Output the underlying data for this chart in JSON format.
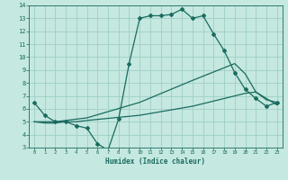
{
  "xlabel": "Humidex (Indice chaleur)",
  "xlim": [
    -0.5,
    23.5
  ],
  "ylim": [
    3,
    14
  ],
  "xticks": [
    0,
    1,
    2,
    3,
    4,
    5,
    6,
    7,
    8,
    9,
    10,
    11,
    12,
    13,
    14,
    15,
    16,
    17,
    18,
    19,
    20,
    21,
    22,
    23
  ],
  "yticks": [
    3,
    4,
    5,
    6,
    7,
    8,
    9,
    10,
    11,
    12,
    13,
    14
  ],
  "bg_color": "#c5e8e0",
  "grid_color": "#9ecfc5",
  "line_color": "#1a6b60",
  "line1_x": [
    0,
    1,
    2,
    3,
    4,
    5,
    6,
    7,
    8,
    9,
    10,
    11,
    12,
    13,
    14,
    15,
    16,
    17,
    18,
    19,
    20,
    21,
    22,
    23
  ],
  "line1_y": [
    6.5,
    5.5,
    5.0,
    5.0,
    4.7,
    4.5,
    3.3,
    2.8,
    5.2,
    9.5,
    13.0,
    13.2,
    13.2,
    13.3,
    13.7,
    13.0,
    13.2,
    11.8,
    10.5,
    8.8,
    7.5,
    6.8,
    6.2,
    6.5
  ],
  "line2_x": [
    0,
    1,
    2,
    3,
    4,
    5,
    10,
    15,
    20,
    21,
    22,
    23
  ],
  "line2_y": [
    5.0,
    4.9,
    4.9,
    5.0,
    5.0,
    5.1,
    5.5,
    6.2,
    7.2,
    7.3,
    6.8,
    6.3
  ],
  "line3_x": [
    0,
    1,
    2,
    3,
    4,
    5,
    10,
    15,
    19,
    20,
    21,
    22,
    23
  ],
  "line3_y": [
    5.0,
    5.0,
    5.0,
    5.1,
    5.2,
    5.3,
    6.5,
    8.2,
    9.5,
    8.7,
    7.3,
    6.7,
    6.5
  ]
}
